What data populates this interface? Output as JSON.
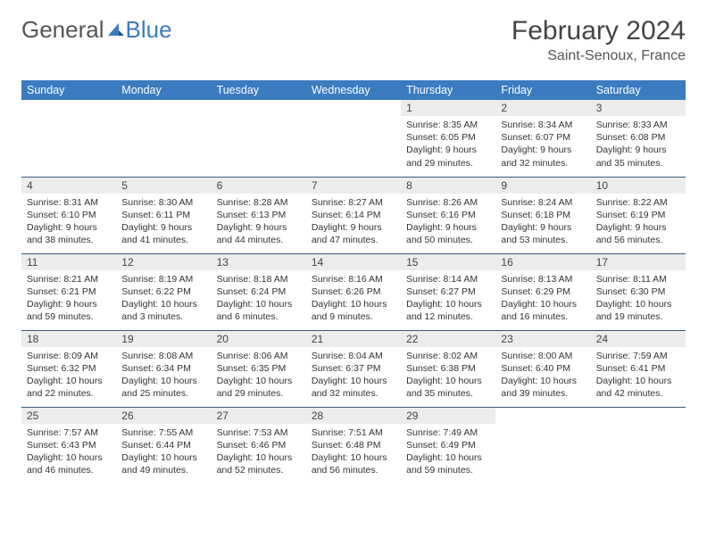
{
  "brand": {
    "part1": "General",
    "part2": "Blue"
  },
  "title": "February 2024",
  "location": "Saint-Senoux, France",
  "colors": {
    "header_bg": "#3b7bbf",
    "header_text": "#ffffff",
    "daynum_bg": "#ececec",
    "border": "#3b5a7a"
  },
  "weekdays": [
    "Sunday",
    "Monday",
    "Tuesday",
    "Wednesday",
    "Thursday",
    "Friday",
    "Saturday"
  ],
  "weeks": [
    [
      null,
      null,
      null,
      null,
      {
        "n": "1",
        "sr": "8:35 AM",
        "ss": "6:05 PM",
        "dl": "9 hours and 29 minutes."
      },
      {
        "n": "2",
        "sr": "8:34 AM",
        "ss": "6:07 PM",
        "dl": "9 hours and 32 minutes."
      },
      {
        "n": "3",
        "sr": "8:33 AM",
        "ss": "6:08 PM",
        "dl": "9 hours and 35 minutes."
      }
    ],
    [
      {
        "n": "4",
        "sr": "8:31 AM",
        "ss": "6:10 PM",
        "dl": "9 hours and 38 minutes."
      },
      {
        "n": "5",
        "sr": "8:30 AM",
        "ss": "6:11 PM",
        "dl": "9 hours and 41 minutes."
      },
      {
        "n": "6",
        "sr": "8:28 AM",
        "ss": "6:13 PM",
        "dl": "9 hours and 44 minutes."
      },
      {
        "n": "7",
        "sr": "8:27 AM",
        "ss": "6:14 PM",
        "dl": "9 hours and 47 minutes."
      },
      {
        "n": "8",
        "sr": "8:26 AM",
        "ss": "6:16 PM",
        "dl": "9 hours and 50 minutes."
      },
      {
        "n": "9",
        "sr": "8:24 AM",
        "ss": "6:18 PM",
        "dl": "9 hours and 53 minutes."
      },
      {
        "n": "10",
        "sr": "8:22 AM",
        "ss": "6:19 PM",
        "dl": "9 hours and 56 minutes."
      }
    ],
    [
      {
        "n": "11",
        "sr": "8:21 AM",
        "ss": "6:21 PM",
        "dl": "9 hours and 59 minutes."
      },
      {
        "n": "12",
        "sr": "8:19 AM",
        "ss": "6:22 PM",
        "dl": "10 hours and 3 minutes."
      },
      {
        "n": "13",
        "sr": "8:18 AM",
        "ss": "6:24 PM",
        "dl": "10 hours and 6 minutes."
      },
      {
        "n": "14",
        "sr": "8:16 AM",
        "ss": "6:26 PM",
        "dl": "10 hours and 9 minutes."
      },
      {
        "n": "15",
        "sr": "8:14 AM",
        "ss": "6:27 PM",
        "dl": "10 hours and 12 minutes."
      },
      {
        "n": "16",
        "sr": "8:13 AM",
        "ss": "6:29 PM",
        "dl": "10 hours and 16 minutes."
      },
      {
        "n": "17",
        "sr": "8:11 AM",
        "ss": "6:30 PM",
        "dl": "10 hours and 19 minutes."
      }
    ],
    [
      {
        "n": "18",
        "sr": "8:09 AM",
        "ss": "6:32 PM",
        "dl": "10 hours and 22 minutes."
      },
      {
        "n": "19",
        "sr": "8:08 AM",
        "ss": "6:34 PM",
        "dl": "10 hours and 25 minutes."
      },
      {
        "n": "20",
        "sr": "8:06 AM",
        "ss": "6:35 PM",
        "dl": "10 hours and 29 minutes."
      },
      {
        "n": "21",
        "sr": "8:04 AM",
        "ss": "6:37 PM",
        "dl": "10 hours and 32 minutes."
      },
      {
        "n": "22",
        "sr": "8:02 AM",
        "ss": "6:38 PM",
        "dl": "10 hours and 35 minutes."
      },
      {
        "n": "23",
        "sr": "8:00 AM",
        "ss": "6:40 PM",
        "dl": "10 hours and 39 minutes."
      },
      {
        "n": "24",
        "sr": "7:59 AM",
        "ss": "6:41 PM",
        "dl": "10 hours and 42 minutes."
      }
    ],
    [
      {
        "n": "25",
        "sr": "7:57 AM",
        "ss": "6:43 PM",
        "dl": "10 hours and 46 minutes."
      },
      {
        "n": "26",
        "sr": "7:55 AM",
        "ss": "6:44 PM",
        "dl": "10 hours and 49 minutes."
      },
      {
        "n": "27",
        "sr": "7:53 AM",
        "ss": "6:46 PM",
        "dl": "10 hours and 52 minutes."
      },
      {
        "n": "28",
        "sr": "7:51 AM",
        "ss": "6:48 PM",
        "dl": "10 hours and 56 minutes."
      },
      {
        "n": "29",
        "sr": "7:49 AM",
        "ss": "6:49 PM",
        "dl": "10 hours and 59 minutes."
      },
      null,
      null
    ]
  ],
  "labels": {
    "sunrise": "Sunrise:",
    "sunset": "Sunset:",
    "daylight": "Daylight:"
  }
}
